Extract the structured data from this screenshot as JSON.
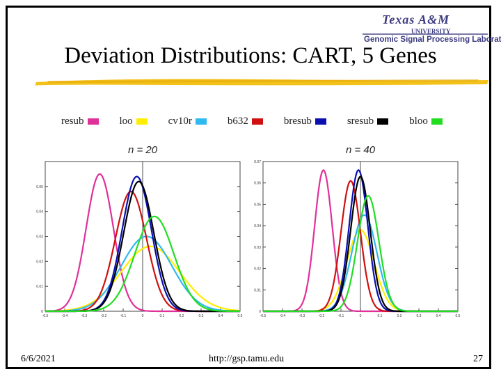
{
  "title": "Deviation Distributions: CART, 5 Genes",
  "logo": {
    "university": "Texas A&M",
    "university_sub": "UNIVERSITY",
    "lab": "Genomic Signal Processing Laboratory"
  },
  "legend": [
    {
      "label": "resub",
      "color": "#e0309a"
    },
    {
      "label": "loo",
      "color": "#ffee00"
    },
    {
      "label": "cv10r",
      "color": "#30b8f0"
    },
    {
      "label": "b632",
      "color": "#d01010"
    },
    {
      "label": "bresub",
      "color": "#0a10b0"
    },
    {
      "label": "sresub",
      "color": "#000000"
    },
    {
      "label": "bloo",
      "color": "#22dd22"
    }
  ],
  "footer": {
    "date": "6/6/2021",
    "url": "http://gsp.tamu.edu",
    "page": "27"
  },
  "chart_data": [
    {
      "type": "line",
      "title": "n = 20",
      "xlim": [
        -0.5,
        0.5
      ],
      "ylim": [
        0,
        0.06
      ],
      "xticks": [
        "-0.5",
        "-0.4",
        "-0.3",
        "-0.2",
        "-0.1",
        "0",
        "0.1",
        "0.2",
        "0.3",
        "0.4",
        "0.5"
      ],
      "xtick_values": [
        -0.5,
        -0.4,
        -0.3,
        -0.2,
        -0.1,
        0,
        0.1,
        0.2,
        0.3,
        0.4,
        0.5
      ],
      "yticks": [
        "0",
        "0.01",
        "0.02",
        "0.03",
        "0.04",
        "0.05"
      ],
      "ytick_values": [
        0,
        0.01,
        0.02,
        0.03,
        0.04,
        0.05
      ],
      "series": [
        {
          "name": "resub",
          "color": "#e0309a",
          "mean": -0.22,
          "sd": 0.07,
          "peak": 0.055
        },
        {
          "name": "loo",
          "color": "#ffee00",
          "mean": 0.04,
          "sd": 0.15,
          "peak": 0.026
        },
        {
          "name": "cv10r",
          "color": "#30b8f0",
          "mean": 0.02,
          "sd": 0.13,
          "peak": 0.03
        },
        {
          "name": "b632",
          "color": "#d01010",
          "mean": -0.06,
          "sd": 0.08,
          "peak": 0.048
        },
        {
          "name": "bresub",
          "color": "#0a10b0",
          "mean": -0.03,
          "sd": 0.075,
          "peak": 0.054
        },
        {
          "name": "sresub",
          "color": "#000000",
          "mean": -0.02,
          "sd": 0.077,
          "peak": 0.052
        },
        {
          "name": "bloo",
          "color": "#22dd22",
          "mean": 0.06,
          "sd": 0.1,
          "peak": 0.038
        }
      ]
    },
    {
      "type": "line",
      "title": "n = 40",
      "xlim": [
        -0.5,
        0.5
      ],
      "ylim": [
        0,
        0.07
      ],
      "xticks": [
        "-0.5",
        "-0.4",
        "-0.3",
        "-0.2",
        "-0.1",
        "0",
        "0.1",
        "0.2",
        "0.3",
        "0.4",
        "0.5"
      ],
      "xtick_values": [
        -0.5,
        -0.4,
        -0.3,
        -0.2,
        -0.1,
        0,
        0.1,
        0.2,
        0.3,
        0.4,
        0.5
      ],
      "yticks": [
        "0",
        "0.01",
        "0.02",
        "0.03",
        "0.04",
        "0.05",
        "0.06",
        "0.07"
      ],
      "ytick_values": [
        0,
        0.01,
        0.02,
        0.03,
        0.04,
        0.05,
        0.06,
        0.07
      ],
      "series": [
        {
          "name": "resub",
          "color": "#e0309a",
          "mean": -0.19,
          "sd": 0.045,
          "peak": 0.066
        },
        {
          "name": "loo",
          "color": "#ffee00",
          "mean": 0.0,
          "sd": 0.07,
          "peak": 0.038
        },
        {
          "name": "cv10r",
          "color": "#30b8f0",
          "mean": 0.02,
          "sd": 0.065,
          "peak": 0.045
        },
        {
          "name": "b632",
          "color": "#d01010",
          "mean": -0.05,
          "sd": 0.05,
          "peak": 0.061
        },
        {
          "name": "bresub",
          "color": "#0a10b0",
          "mean": -0.01,
          "sd": 0.048,
          "peak": 0.066
        },
        {
          "name": "sresub",
          "color": "#000000",
          "mean": 0.0,
          "sd": 0.05,
          "peak": 0.063
        },
        {
          "name": "bloo",
          "color": "#22dd22",
          "mean": 0.04,
          "sd": 0.055,
          "peak": 0.054
        }
      ]
    }
  ]
}
